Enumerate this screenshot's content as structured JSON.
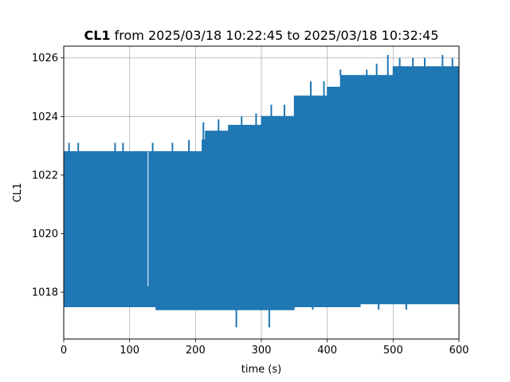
{
  "chart_data": {
    "type": "line",
    "title": {
      "bold": "CL1",
      "rest": " from 2025/03/18 10:22:45 to 2025/03/18 10:32:45"
    },
    "xlabel": "time (s)",
    "ylabel": "CL1",
    "xlim": [
      0,
      600
    ],
    "ylim": [
      1016.4,
      1026.4
    ],
    "xticks": [
      0,
      100,
      200,
      300,
      400,
      500,
      600
    ],
    "yticks": [
      1018,
      1020,
      1022,
      1024,
      1026
    ],
    "grid": true,
    "color": "#1f77b4",
    "series": [
      {
        "envelope": {
          "x": [
            0,
            100,
            128,
            140,
            210,
            215,
            250,
            300,
            350,
            400,
            420,
            450,
            500,
            600
          ],
          "upper": [
            1022.8,
            1022.8,
            1022.8,
            1022.8,
            1023.2,
            1023.5,
            1023.7,
            1024.0,
            1024.7,
            1025.0,
            1025.4,
            1025.4,
            1025.7,
            1025.8
          ],
          "lower": [
            1017.5,
            1017.5,
            1017.5,
            1017.4,
            1017.4,
            1017.4,
            1017.4,
            1017.4,
            1017.5,
            1017.5,
            1017.5,
            1017.6,
            1017.6,
            1017.6
          ]
        },
        "gap": {
          "x": 128,
          "bottom": 1018.2
        },
        "spikes_up": [
          {
            "x": 8,
            "y": 1023.1
          },
          {
            "x": 22,
            "y": 1023.1
          },
          {
            "x": 78,
            "y": 1023.1
          },
          {
            "x": 90,
            "y": 1023.1
          },
          {
            "x": 110,
            "y": 1022.5
          },
          {
            "x": 135,
            "y": 1023.1
          },
          {
            "x": 165,
            "y": 1023.1
          },
          {
            "x": 190,
            "y": 1023.2
          },
          {
            "x": 212,
            "y": 1023.8
          },
          {
            "x": 235,
            "y": 1023.9
          },
          {
            "x": 270,
            "y": 1024.0
          },
          {
            "x": 292,
            "y": 1024.1
          },
          {
            "x": 315,
            "y": 1024.4
          },
          {
            "x": 335,
            "y": 1024.4
          },
          {
            "x": 360,
            "y": 1024.7
          },
          {
            "x": 375,
            "y": 1025.2
          },
          {
            "x": 395,
            "y": 1025.2
          },
          {
            "x": 420,
            "y": 1025.6
          },
          {
            "x": 460,
            "y": 1025.6
          },
          {
            "x": 475,
            "y": 1025.8
          },
          {
            "x": 492,
            "y": 1026.1
          },
          {
            "x": 510,
            "y": 1026.0
          },
          {
            "x": 530,
            "y": 1026.0
          },
          {
            "x": 548,
            "y": 1026.0
          },
          {
            "x": 575,
            "y": 1026.1
          },
          {
            "x": 590,
            "y": 1026.0
          }
        ],
        "spikes_down": [
          {
            "x": 262,
            "y": 1016.8
          },
          {
            "x": 312,
            "y": 1016.8
          },
          {
            "x": 378,
            "y": 1017.4
          },
          {
            "x": 478,
            "y": 1017.4
          },
          {
            "x": 520,
            "y": 1017.4
          }
        ]
      }
    ]
  }
}
